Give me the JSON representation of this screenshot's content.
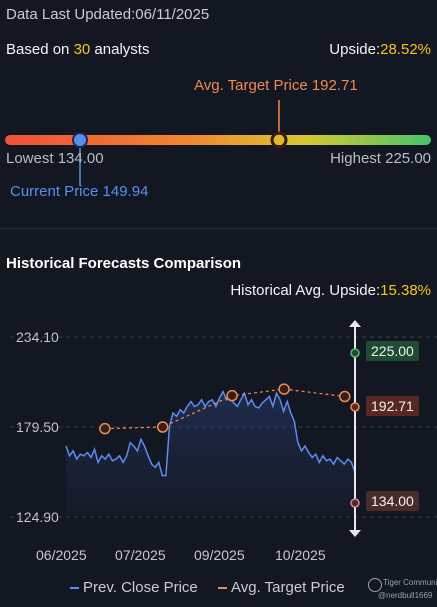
{
  "header": {
    "updated": "Data Last Updated:06/11/2025",
    "based_on_prefix": "Based on ",
    "analyst_count": "30",
    "based_on_suffix": " analysts",
    "upside_label": "Upside:",
    "upside_value": "28.52%"
  },
  "range": {
    "avg_target_label": "Avg. Target Price 192.71",
    "lowest_label": "Lowest 134.00",
    "highest_label": "Highest 225.00",
    "current_label": "Current Price 149.94",
    "low": 134.0,
    "high": 225.0,
    "current": 149.94,
    "avg_target": 192.71
  },
  "historical": {
    "title": "Historical Forecasts Comparison",
    "upside_label": "Historical Avg. Upside:",
    "upside_value": "15.38%",
    "badge_high": "225.00",
    "badge_avg": "192.71",
    "badge_low": "134.00",
    "legend_close": "Prev. Close Price",
    "legend_target": "Avg. Target Price",
    "watermark_brand": "Tiger Community",
    "watermark_user": "@nerdbull1669"
  },
  "colors": {
    "background": "#131722",
    "close_line": "#5b8def",
    "target_line": "#f08a54",
    "highlight": "#f5c518",
    "high_badge": "#1f4a34",
    "avg_badge": "#5a2822",
    "low_badge": "#4a2a2a"
  },
  "chart_data": {
    "type": "line",
    "x_tick_labels": [
      "06/2025",
      "07/2025",
      "09/2025",
      "10/2025"
    ],
    "y_tick_labels": [
      "234.10",
      "179.50",
      "124.90"
    ],
    "ylim": [
      124.9,
      234.1
    ],
    "series": [
      {
        "name": "Prev. Close Price",
        "values": [
          168,
          162,
          165,
          160,
          163,
          162,
          164,
          161,
          166,
          158,
          162,
          160,
          163,
          159,
          160,
          162,
          158,
          162,
          170,
          168,
          165,
          172,
          168,
          162,
          157,
          155,
          158,
          150,
          150,
          180,
          188,
          186,
          190,
          188,
          192,
          195,
          192,
          193,
          196,
          192,
          195,
          196,
          192,
          197,
          201,
          196,
          198,
          194,
          192,
          196,
          200,
          193,
          196,
          192,
          191,
          194,
          196,
          198,
          192,
          200,
          196,
          189,
          195,
          188,
          183,
          170,
          165,
          168,
          164,
          161,
          163,
          158,
          162,
          159,
          160,
          157,
          161,
          159,
          157,
          160,
          158,
          152
        ]
      },
      {
        "name": "Avg. Target Price",
        "points": [
          178.5,
          179.5,
          198.5,
          202.5,
          198.0
        ],
        "point_positions": [
          0.1,
          0.3,
          0.54,
          0.72,
          0.93
        ]
      }
    ],
    "markers": {
      "high": 225.0,
      "avg_target": 192.71,
      "low": 134.0
    }
  }
}
